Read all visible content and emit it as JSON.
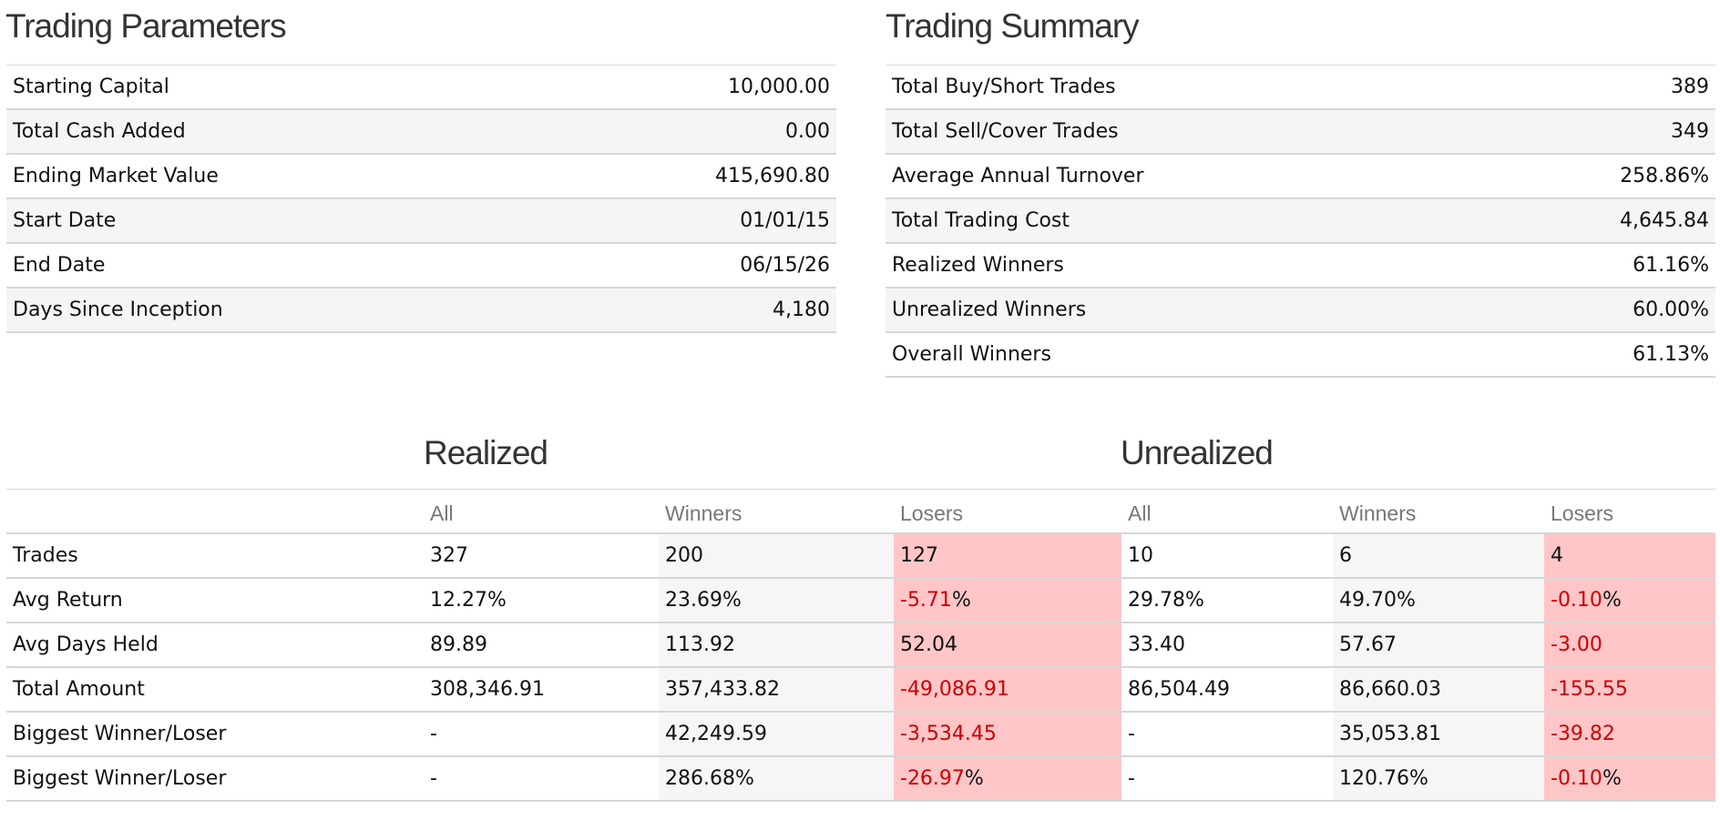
{
  "trading_parameters": {
    "title": "Trading Parameters",
    "rows": [
      {
        "label": "Starting Capital",
        "value": "10,000.00"
      },
      {
        "label": "Total Cash Added",
        "value": "0.00"
      },
      {
        "label": "Ending Market Value",
        "value": "415,690.80"
      },
      {
        "label": "Start Date",
        "value": "01/01/15"
      },
      {
        "label": "End Date",
        "value": "06/15/26"
      },
      {
        "label": "Days Since Inception",
        "value": "4,180"
      }
    ]
  },
  "trading_summary": {
    "title": "Trading Summary",
    "rows": [
      {
        "label": "Total Buy/Short Trades",
        "value": "389"
      },
      {
        "label": "Total Sell/Cover Trades",
        "value": "349"
      },
      {
        "label": "Average Annual Turnover",
        "value": "258.86%"
      },
      {
        "label": "Total Trading Cost",
        "value": "4,645.84"
      },
      {
        "label": "Realized Winners",
        "value": "61.16%"
      },
      {
        "label": "Unrealized Winners",
        "value": "60.00%"
      },
      {
        "label": "Overall Winners",
        "value": "61.13%"
      }
    ]
  },
  "results": {
    "realized_title": "Realized",
    "unrealized_title": "Unrealized",
    "columns": [
      "All",
      "Winners",
      "Losers",
      "All",
      "Winners",
      "Losers"
    ],
    "rows": [
      {
        "label": "Trades",
        "r_all": "327",
        "r_win": "200",
        "r_los": "127",
        "r_los_suffix": "",
        "u_all": "10",
        "u_win": "6",
        "u_los": "4",
        "u_los_suffix": ""
      },
      {
        "label": "Avg Return",
        "r_all": "12.27%",
        "r_win": "23.69%",
        "r_los": "-5.71",
        "r_los_suffix": "%",
        "u_all": "29.78%",
        "u_win": "49.70%",
        "u_los": "-0.10",
        "u_los_suffix": "%"
      },
      {
        "label": "Avg Days Held",
        "r_all": "89.89",
        "r_win": "113.92",
        "r_los": "52.04",
        "r_los_suffix": "",
        "u_all": "33.40",
        "u_win": "57.67",
        "u_los": "-3.00",
        "u_los_suffix": ""
      },
      {
        "label": "Total Amount",
        "r_all": "308,346.91",
        "r_win": "357,433.82",
        "r_los": "-49,086.91",
        "r_los_suffix": "",
        "u_all": "86,504.49",
        "u_win": "86,660.03",
        "u_los": "-155.55",
        "u_los_suffix": ""
      },
      {
        "label": "Biggest Winner/Loser",
        "r_all": "-",
        "r_win": "42,249.59",
        "r_los": "-3,534.45",
        "r_los_suffix": "",
        "u_all": "-",
        "u_win": "35,053.81",
        "u_los": "-39.82",
        "u_los_suffix": ""
      },
      {
        "label": "Biggest Winner/Loser",
        "r_all": "-",
        "r_win": "286.68%",
        "r_los": "-26.97",
        "r_los_suffix": "%",
        "u_all": "-",
        "u_win": "120.76%",
        "u_los": "-0.10",
        "u_los_suffix": "%"
      }
    ]
  },
  "colors": {
    "loser_bg": "#ffc6c8",
    "negative_text": "#cc0000",
    "winner_bg": "#f6f6f6"
  }
}
